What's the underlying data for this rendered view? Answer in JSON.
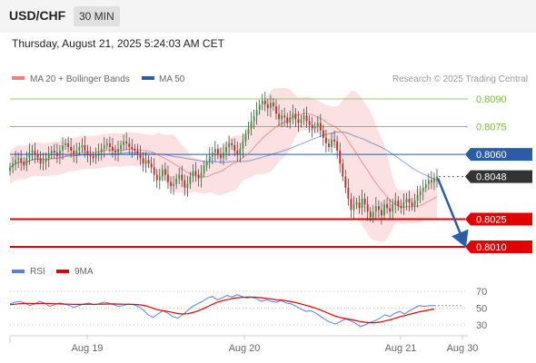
{
  "header": {
    "symbol": "USD/CHF",
    "interval": "30 MIN",
    "datetime": "Thursday, August 21, 2025 5:24:03 AM CET"
  },
  "legend": {
    "main": [
      {
        "label": "MA 20 + Bollinger Bands",
        "color": "#f08080"
      },
      {
        "label": "MA 50",
        "color": "#2a5ca8"
      }
    ],
    "rsi": [
      {
        "label": "RSI",
        "color": "#5b7fe0"
      },
      {
        "label": "9MA",
        "color": "#e00000"
      }
    ]
  },
  "credit": "Research © 2025 Trading Central",
  "colors": {
    "resistance": "#7ab648",
    "pivot": "#2a5ca8",
    "support": "#e00000",
    "candle_up": "#3a9a3a",
    "candle_down": "#c62828",
    "arrow": "#2a5ca8"
  },
  "chart_data": [
    {
      "type": "candlestick",
      "title": "USD/CHF 30 MIN",
      "ylim": [
        0.7997,
        0.8101
      ],
      "x_tick_labels": [
        "Aug 19",
        "Aug 20",
        "Aug 21",
        "Aug 30"
      ],
      "levels": [
        {
          "label": "0.8090",
          "value": 0.809,
          "kind": "resistance"
        },
        {
          "label": "0.8075",
          "value": 0.8075,
          "kind": "resistance"
        },
        {
          "label": "0.8060",
          "value": 0.806,
          "kind": "pivot"
        },
        {
          "label": "0.8048",
          "value": 0.8048,
          "kind": "current"
        },
        {
          "label": "0.8025",
          "value": 0.8025,
          "kind": "support"
        },
        {
          "label": "0.8010",
          "value": 0.801,
          "kind": "support"
        }
      ],
      "forecast": {
        "from": 0.8048,
        "to": 0.801
      },
      "close_series": [
        0.8053,
        0.8055,
        0.8057,
        0.8058,
        0.8056,
        0.8054,
        0.8058,
        0.8061,
        0.8062,
        0.806,
        0.8058,
        0.8055,
        0.8056,
        0.8058,
        0.806,
        0.8062,
        0.8061,
        0.8059,
        0.8062,
        0.8065,
        0.8066,
        0.8064,
        0.8062,
        0.806,
        0.8062,
        0.8064,
        0.8065,
        0.8062,
        0.806,
        0.8059,
        0.8058,
        0.806,
        0.8061,
        0.8063,
        0.8065,
        0.8066,
        0.8064,
        0.8062,
        0.8061,
        0.8063,
        0.8065,
        0.8067,
        0.8066,
        0.8064,
        0.8063,
        0.8062,
        0.806,
        0.8058,
        0.8055,
        0.8057,
        0.8055,
        0.8053,
        0.8049,
        0.8046,
        0.8048,
        0.8052,
        0.8049,
        0.8045,
        0.8043,
        0.8044,
        0.8047,
        0.8049,
        0.8046,
        0.8042,
        0.8044,
        0.8048,
        0.8051,
        0.8049,
        0.8047,
        0.805,
        0.8054,
        0.8056,
        0.8059,
        0.8061,
        0.8063,
        0.806,
        0.8058,
        0.8061,
        0.8064,
        0.8066,
        0.8065,
        0.8062,
        0.806,
        0.8063,
        0.8067,
        0.8071,
        0.8074,
        0.8078,
        0.8081,
        0.8084,
        0.8087,
        0.8089,
        0.8087,
        0.8085,
        0.8088,
        0.8086,
        0.8082,
        0.8079,
        0.8081,
        0.808,
        0.8077,
        0.808,
        0.8082,
        0.8079,
        0.8077,
        0.8079,
        0.8081,
        0.8078,
        0.8076,
        0.8074,
        0.8075,
        0.8077,
        0.8073,
        0.8069,
        0.8066,
        0.8064,
        0.8068,
        0.8067,
        0.8062,
        0.8055,
        0.8048,
        0.8042,
        0.8036,
        0.803,
        0.8033,
        0.8034,
        0.8031,
        0.8036,
        0.8033,
        0.8029,
        0.8026,
        0.8029,
        0.8032,
        0.803,
        0.8027,
        0.8033,
        0.8031,
        0.8029,
        0.8033,
        0.8035,
        0.8032,
        0.8031,
        0.8034,
        0.8036,
        0.8034,
        0.8032,
        0.8035,
        0.8038,
        0.804,
        0.8042,
        0.8044,
        0.8046,
        0.8045,
        0.8047,
        0.8048
      ]
    },
    {
      "type": "line",
      "title": "RSI",
      "ylim": [
        20,
        80
      ],
      "y_ticks": [
        70,
        50,
        30
      ],
      "x_tick_labels": [
        "Aug 19",
        "Aug 20",
        "Aug 21",
        "Aug 30"
      ],
      "series": [
        {
          "name": "RSI",
          "values": [
            55,
            57,
            58,
            56,
            53,
            55,
            58,
            56,
            52,
            54,
            56,
            55,
            53,
            51,
            53,
            55,
            56,
            54,
            55,
            57,
            56,
            54,
            52,
            53,
            55,
            54,
            52,
            48,
            42,
            39,
            43,
            47,
            44,
            40,
            38,
            42,
            47,
            52,
            55,
            58,
            62,
            64,
            60,
            62,
            65,
            63,
            66,
            64,
            62,
            63,
            61,
            58,
            60,
            58,
            57,
            59,
            56,
            55,
            52,
            49,
            46,
            47,
            44,
            40,
            36,
            33,
            31,
            34,
            37,
            35,
            32,
            28,
            30,
            33,
            35,
            38,
            42,
            40,
            44,
            46,
            43,
            47,
            50,
            53,
            52,
            53,
            53
          ]
        },
        {
          "name": "9MA",
          "values": [
            54,
            54.6,
            55.2,
            55.6,
            55.6,
            55.4,
            55.4,
            55.6,
            55.4,
            55.2,
            55,
            54.8,
            54.6,
            54.4,
            54.4,
            54.5,
            54.6,
            54.5,
            54.6,
            54.8,
            54.9,
            55,
            54.8,
            54.6,
            54.5,
            54.4,
            54.1,
            53.3,
            51.9,
            49.8,
            48,
            47,
            46,
            44.8,
            43.5,
            43,
            43.3,
            44.6,
            46.4,
            48.8,
            51.5,
            54.4,
            56.9,
            58.6,
            60.1,
            61.2,
            62.3,
            62.8,
            63.1,
            63.2,
            62.9,
            62.3,
            61.6,
            60.8,
            60,
            59.5,
            58.6,
            57.7,
            56.5,
            55,
            53.3,
            51.6,
            49.8,
            47.6,
            45.1,
            42.6,
            40.3,
            38.8,
            37.6,
            36.5,
            35.3,
            34,
            33.1,
            32.6,
            32.6,
            33.3,
            34.6,
            35.9,
            37.8,
            39.6,
            41,
            42.6,
            44.1,
            45.6,
            46.6,
            47.8,
            48.8
          ]
        }
      ]
    }
  ]
}
